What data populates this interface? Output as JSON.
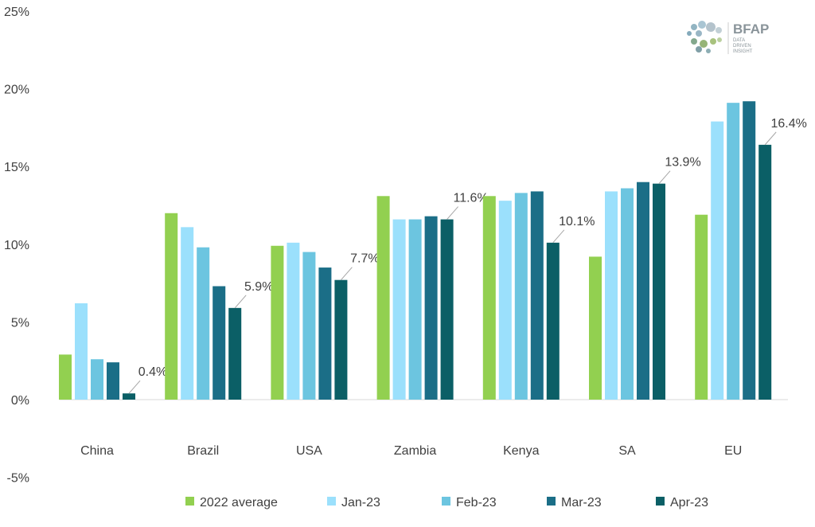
{
  "chart_data": {
    "type": "bar",
    "categories": [
      "China",
      "Brazil",
      "USA",
      "Zambia",
      "Kenya",
      "SA",
      "EU"
    ],
    "series": [
      {
        "name": "2022 average",
        "color": "#92D050",
        "values": [
          2.9,
          12.0,
          9.9,
          13.1,
          13.1,
          9.2,
          11.9
        ]
      },
      {
        "name": "Jan-23",
        "color": "#9BE0FC",
        "values": [
          6.2,
          11.1,
          10.1,
          11.6,
          12.8,
          13.4,
          17.9
        ]
      },
      {
        "name": "Feb-23",
        "color": "#6CC5E0",
        "values": [
          2.6,
          9.8,
          9.5,
          11.6,
          13.3,
          13.6,
          19.1
        ]
      },
      {
        "name": "Mar-23",
        "color": "#1B6E87",
        "values": [
          2.4,
          7.3,
          8.5,
          11.8,
          13.4,
          14.0,
          19.2
        ]
      },
      {
        "name": "Apr-23",
        "color": "#0B5F66",
        "values": [
          0.4,
          5.9,
          7.7,
          11.6,
          10.1,
          13.9,
          16.4
        ]
      }
    ],
    "data_labels": [
      "0.4%",
      "5.9%",
      "7.7%",
      "11.6%",
      "10.1%",
      "13.9%",
      "16.4%"
    ],
    "yticks": [
      "-5%",
      "0%",
      "5%",
      "10%",
      "15%",
      "20%",
      "25%"
    ],
    "ylim": [
      -5,
      25
    ],
    "grid": false,
    "legend": "bottom",
    "unit": "%"
  },
  "logo": {
    "name": "BFAP",
    "tagline": "DATA DRIVEN INSIGHT"
  }
}
